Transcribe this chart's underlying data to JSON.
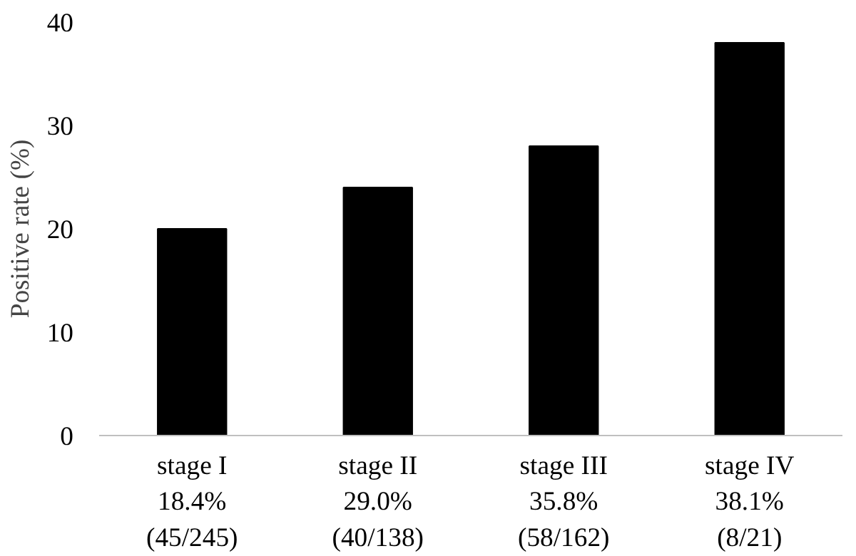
{
  "chart_data": {
    "type": "bar",
    "ylabel": "Positive rate (%)",
    "categories": [
      "stage I\n18.4%\n(45/245)",
      "stage II\n29.0%\n(40/138)",
      "stage III\n35.8%\n(58/162)",
      "stage IV\n38.1%\n(8/21)"
    ],
    "values": [
      20,
      24,
      28,
      38
    ],
    "color": "#000000",
    "ylim": [
      0,
      40
    ],
    "yticks": [
      0,
      10,
      20,
      30,
      40
    ],
    "grid": false
  }
}
